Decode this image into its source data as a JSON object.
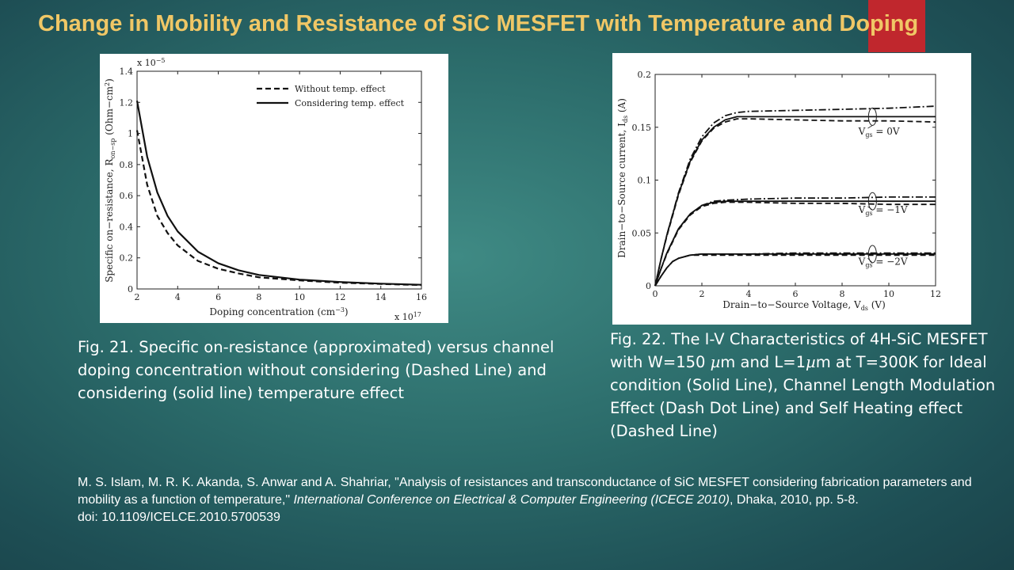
{
  "slide": {
    "title": "Change in Mobility and Resistance of SiC MESFET with Temperature and Doping",
    "accent_color": "#c0272d",
    "title_color": "#f0c766"
  },
  "figures": [
    {
      "caption": "Fig. 21. Specific on-resistance (approximated) versus channel doping concentration without considering (Dashed Line) and considering (solid line) temperature effect"
    },
    {
      "caption_parts": [
        "Fig. 22. The I-V Characteristics of 4H-SiC MESFET with W=150 ",
        "µ",
        "m and L=1",
        "µ",
        "m at T=300K for Ideal condition (Solid Line), Channel Length Modulation Effect (Dash Dot Line) and Self Heating effect (Dashed Line)"
      ]
    }
  ],
  "reference": {
    "authors_title": "M. S. Islam, M. R. K. Akanda, S. Anwar and A. Shahriar, \"Analysis of resistances and transconductance of SiC MESFET considering fabrication parameters and mobility as a function of temperature,\" ",
    "venue": "International Conference on Electrical & Computer Engineering (ICECE 2010)",
    "details": ", Dhaka, 2010, pp. 5-8.",
    "doi": "doi: 10.1109/ICELCE.2010.5700539"
  },
  "chart_data": [
    {
      "type": "line",
      "xlabel": "Doping concentration (cm",
      "xlabel_sup": "−3",
      "xlabel_end": ")",
      "x_multiplier": "x 10",
      "x_multiplier_exp": "17",
      "ylabel": "Specific on−resistance, R",
      "ylabel_sub": "on−sp",
      "ylabel_unit": " (Ohm−cm",
      "ylabel_unit_sup": "2",
      "ylabel_end": ")",
      "y_multiplier": "x 10",
      "y_multiplier_exp": "−5",
      "xlim": [
        2,
        16
      ],
      "ylim": [
        0,
        1.4
      ],
      "x_ticks": [
        "2",
        "4",
        "6",
        "8",
        "10",
        "12",
        "14",
        "16"
      ],
      "y_ticks": [
        "0",
        "0.2",
        "0.4",
        "0.6",
        "0.8",
        "1",
        "1.2",
        "1.4"
      ],
      "legend_position": "top-right",
      "series": [
        {
          "name": "Without temp. effect",
          "style": "dashed",
          "x": [
            2,
            2.5,
            3,
            3.5,
            4,
            5,
            6,
            7,
            8,
            10,
            12,
            14,
            16
          ],
          "y": [
            1.02,
            0.67,
            0.47,
            0.36,
            0.28,
            0.18,
            0.13,
            0.1,
            0.075,
            0.055,
            0.04,
            0.032,
            0.025
          ]
        },
        {
          "name": "Considering temp. effect",
          "style": "solid",
          "x": [
            2,
            2.5,
            3,
            3.5,
            4,
            5,
            6,
            7,
            8,
            10,
            12,
            14,
            16
          ],
          "y": [
            1.21,
            0.85,
            0.62,
            0.47,
            0.37,
            0.24,
            0.165,
            0.12,
            0.09,
            0.06,
            0.045,
            0.034,
            0.027
          ]
        }
      ]
    },
    {
      "type": "line",
      "xlabel": "Drain−to−Source Voltage, V",
      "xlabel_sub": "ds",
      "xlabel_end": " (V)",
      "ylabel": "Drain−to−Source current, I",
      "ylabel_sub": "ds",
      "ylabel_end": " (A)",
      "xlim": [
        0,
        12
      ],
      "ylim": [
        0,
        0.2
      ],
      "x_ticks": [
        "0",
        "2",
        "4",
        "6",
        "8",
        "10",
        "12"
      ],
      "y_ticks": [
        "0",
        "0.05",
        "0.1",
        "0.15",
        "0.2"
      ],
      "annotations": [
        {
          "prefix": "V",
          "sub": "gs",
          "suffix": " = 0V",
          "x": 8.7,
          "y": 0.143
        },
        {
          "prefix": "V",
          "sub": "gs",
          "suffix": " = −1V",
          "x": 8.7,
          "y": 0.069
        },
        {
          "prefix": "V",
          "sub": "gs",
          "suffix": " = −2V",
          "x": 8.7,
          "y": 0.02
        }
      ],
      "series": [
        {
          "name": "",
          "style": "solid",
          "x": [
            0,
            0.25,
            0.5,
            1,
            1.5,
            2,
            2.5,
            3,
            3.5,
            4,
            6,
            8,
            10,
            12
          ],
          "y": [
            0,
            0.025,
            0.048,
            0.087,
            0.118,
            0.138,
            0.15,
            0.157,
            0.16,
            0.16,
            0.16,
            0.16,
            0.16,
            0.16
          ]
        },
        {
          "name": "",
          "style": "dashdot",
          "x": [
            0,
            0.25,
            0.5,
            1,
            1.5,
            2,
            2.5,
            3,
            3.5,
            4,
            6,
            8,
            10,
            12
          ],
          "y": [
            0,
            0.025,
            0.048,
            0.088,
            0.12,
            0.141,
            0.154,
            0.161,
            0.164,
            0.165,
            0.166,
            0.167,
            0.168,
            0.17
          ]
        },
        {
          "name": "",
          "style": "dashed",
          "x": [
            0,
            0.25,
            0.5,
            1,
            1.5,
            2,
            2.5,
            3,
            3.5,
            4,
            6,
            8,
            10,
            12
          ],
          "y": [
            0,
            0.025,
            0.047,
            0.086,
            0.117,
            0.137,
            0.149,
            0.155,
            0.158,
            0.158,
            0.157,
            0.156,
            0.156,
            0.155
          ]
        },
        {
          "name": "",
          "style": "solid",
          "x": [
            0,
            0.25,
            0.5,
            1,
            1.5,
            2,
            2.5,
            3,
            4,
            6,
            8,
            10,
            12
          ],
          "y": [
            0,
            0.016,
            0.031,
            0.054,
            0.068,
            0.076,
            0.079,
            0.08,
            0.08,
            0.08,
            0.08,
            0.08,
            0.08
          ]
        },
        {
          "name": "",
          "style": "dashdot",
          "x": [
            0,
            0.25,
            0.5,
            1,
            1.5,
            2,
            2.5,
            3,
            4,
            6,
            8,
            10,
            12
          ],
          "y": [
            0,
            0.016,
            0.031,
            0.054,
            0.068,
            0.076,
            0.08,
            0.081,
            0.082,
            0.083,
            0.083,
            0.084,
            0.084
          ]
        },
        {
          "name": "",
          "style": "dashed",
          "x": [
            0,
            0.25,
            0.5,
            1,
            1.5,
            2,
            2.5,
            3,
            4,
            6,
            8,
            10,
            12
          ],
          "y": [
            0,
            0.016,
            0.03,
            0.053,
            0.067,
            0.075,
            0.078,
            0.079,
            0.079,
            0.078,
            0.078,
            0.077,
            0.077
          ]
        },
        {
          "name": "",
          "style": "solid",
          "x": [
            0,
            0.25,
            0.5,
            0.75,
            1,
            1.5,
            2,
            3,
            4,
            6,
            8,
            10,
            12
          ],
          "y": [
            0,
            0.009,
            0.017,
            0.023,
            0.026,
            0.029,
            0.03,
            0.03,
            0.03,
            0.03,
            0.03,
            0.03,
            0.03
          ]
        },
        {
          "name": "",
          "style": "dashdot",
          "x": [
            0,
            0.25,
            0.5,
            0.75,
            1,
            1.5,
            2,
            3,
            4,
            6,
            8,
            10,
            12
          ],
          "y": [
            0,
            0.009,
            0.017,
            0.023,
            0.026,
            0.029,
            0.03,
            0.03,
            0.03,
            0.031,
            0.031,
            0.031,
            0.031
          ]
        },
        {
          "name": "",
          "style": "dashed",
          "x": [
            0,
            0.25,
            0.5,
            0.75,
            1,
            1.5,
            2,
            3,
            4,
            6,
            8,
            10,
            12
          ],
          "y": [
            0,
            0.009,
            0.017,
            0.023,
            0.026,
            0.029,
            0.029,
            0.029,
            0.029,
            0.029,
            0.029,
            0.029,
            0.029
          ]
        }
      ]
    }
  ]
}
